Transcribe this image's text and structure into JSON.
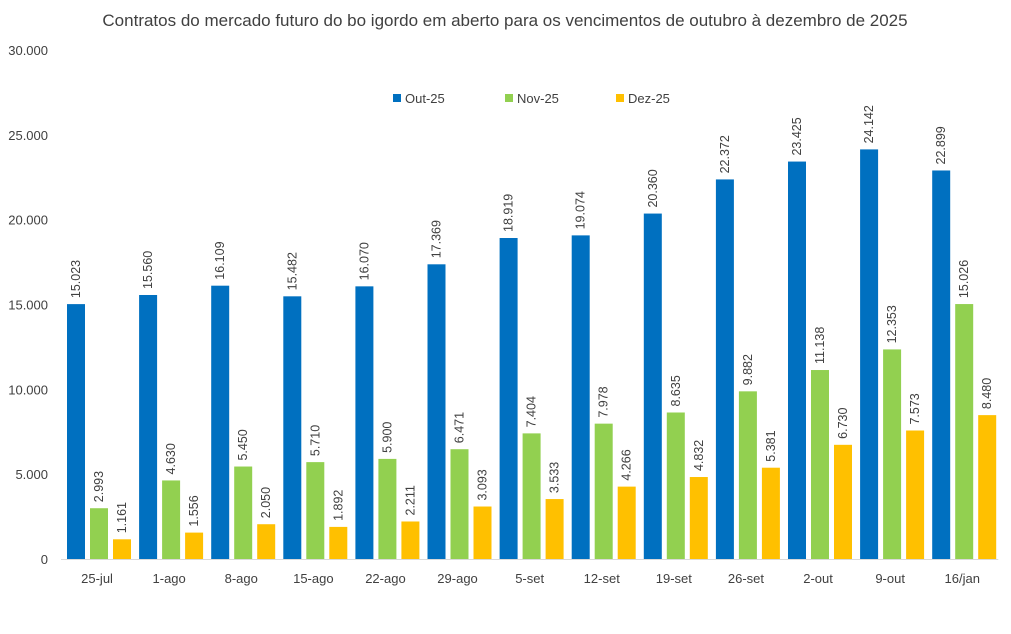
{
  "chart_data": {
    "type": "bar",
    "title": "Contratos do mercado futuro do bo igordo em aberto para os vencimentos de outubro à dezembro de 2025",
    "xlabel": "",
    "ylabel": "",
    "ylim": [
      0,
      30000
    ],
    "yticks": [
      0,
      5000,
      10000,
      15000,
      20000,
      25000,
      30000
    ],
    "ytick_labels": [
      "0",
      "5.000",
      "10.000",
      "15.000",
      "20.000",
      "25.000",
      "30.000"
    ],
    "grid": false,
    "legend_position": "top",
    "categories": [
      "25-jul",
      "1-ago",
      "8-ago",
      "15-ago",
      "22-ago",
      "29-ago",
      "5-set",
      "12-set",
      "19-set",
      "26-set",
      "2-out",
      "9-out",
      "16/jan"
    ],
    "series": [
      {
        "name": "Out-25",
        "color": "#0070C0",
        "values": [
          15023,
          15560,
          16109,
          15482,
          16070,
          17369,
          18919,
          19074,
          20360,
          22372,
          23425,
          24142,
          22899
        ],
        "labels": [
          "15.023",
          "15.560",
          "16.109",
          "15.482",
          "16.070",
          "17.369",
          "18.919",
          "19.074",
          "20.360",
          "22.372",
          "23.425",
          "24.142",
          "22.899"
        ]
      },
      {
        "name": "Nov-25",
        "color": "#92D050",
        "values": [
          2993,
          4630,
          5450,
          5710,
          5900,
          6471,
          7404,
          7978,
          8635,
          9882,
          11138,
          12353,
          15026
        ],
        "labels": [
          "2.993",
          "4.630",
          "5.450",
          "5.710",
          "5.900",
          "6.471",
          "7.404",
          "7.978",
          "8.635",
          "9.882",
          "11.138",
          "12.353",
          "15.026"
        ]
      },
      {
        "name": "Dez-25",
        "color": "#FFC000",
        "values": [
          1161,
          1556,
          2050,
          1892,
          2211,
          3093,
          3533,
          4266,
          4832,
          5381,
          6730,
          7573,
          8480
        ],
        "labels": [
          "1.161",
          "1.556",
          "2.050",
          "1.892",
          "2.211",
          "3.093",
          "3.533",
          "4.266",
          "4.832",
          "5.381",
          "6.730",
          "7.573",
          "8.480"
        ]
      }
    ]
  }
}
